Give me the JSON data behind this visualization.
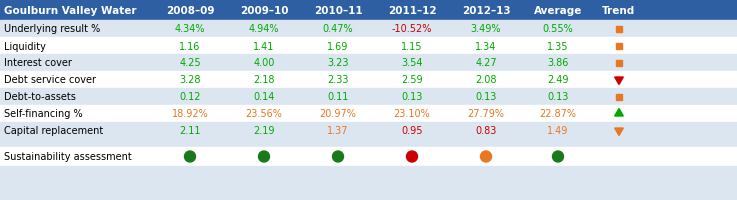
{
  "title": "Goulburn Valley Water",
  "header_cols": [
    "2008–09",
    "2009–10",
    "2010–11",
    "2011–12",
    "2012–13",
    "Average",
    "Trend"
  ],
  "rows": [
    {
      "label": "Underlying result %",
      "values": [
        "4.34%",
        "4.94%",
        "0.47%",
        "-10.52%",
        "3.49%",
        "0.55%"
      ],
      "value_colors": [
        "#00aa00",
        "#00aa00",
        "#00aa00",
        "#cc0000",
        "#00aa00",
        "#00aa00"
      ],
      "trend_shape": "square",
      "trend_color": "#e87722"
    },
    {
      "label": "Liquidity",
      "values": [
        "1.16",
        "1.41",
        "1.69",
        "1.15",
        "1.34",
        "1.35"
      ],
      "value_colors": [
        "#00aa00",
        "#00aa00",
        "#00aa00",
        "#00aa00",
        "#00aa00",
        "#00aa00"
      ],
      "trend_shape": "square",
      "trend_color": "#e87722"
    },
    {
      "label": "Interest cover",
      "values": [
        "4.25",
        "4.00",
        "3.23",
        "3.54",
        "4.27",
        "3.86"
      ],
      "value_colors": [
        "#00aa00",
        "#00aa00",
        "#00aa00",
        "#00aa00",
        "#00aa00",
        "#00aa00"
      ],
      "trend_shape": "square",
      "trend_color": "#e87722"
    },
    {
      "label": "Debt service cover",
      "values": [
        "3.28",
        "2.18",
        "2.33",
        "2.59",
        "2.08",
        "2.49"
      ],
      "value_colors": [
        "#00aa00",
        "#00aa00",
        "#00aa00",
        "#00aa00",
        "#00aa00",
        "#00aa00"
      ],
      "trend_shape": "triangle_down",
      "trend_color": "#cc0000"
    },
    {
      "label": "Debt-to-assets",
      "values": [
        "0.12",
        "0.14",
        "0.11",
        "0.13",
        "0.13",
        "0.13"
      ],
      "value_colors": [
        "#00aa00",
        "#00aa00",
        "#00aa00",
        "#00aa00",
        "#00aa00",
        "#00aa00"
      ],
      "trend_shape": "square",
      "trend_color": "#e87722"
    },
    {
      "label": "Self-financing %",
      "values": [
        "18.92%",
        "23.56%",
        "20.97%",
        "23.10%",
        "27.79%",
        "22.87%"
      ],
      "value_colors": [
        "#e87722",
        "#e87722",
        "#e87722",
        "#e87722",
        "#e87722",
        "#e87722"
      ],
      "trend_shape": "triangle_up",
      "trend_color": "#00aa00"
    },
    {
      "label": "Capital replacement",
      "values": [
        "2.11",
        "2.19",
        "1.37",
        "0.95",
        "0.83",
        "1.49"
      ],
      "value_colors": [
        "#00aa00",
        "#00aa00",
        "#e87722",
        "#cc0000",
        "#cc0000",
        "#e87722"
      ],
      "trend_shape": "triangle_down",
      "trend_color": "#e87722"
    }
  ],
  "sustainability_label": "Sustainability assessment",
  "sustainability_colors": [
    "#1a7a1a",
    "#1a7a1a",
    "#1a7a1a",
    "#cc0000",
    "#e87722",
    "#1a7a1a"
  ],
  "header_bg": "#2e5fa3",
  "header_text_color": "#ffffff",
  "row_bg_odd": "#dce6f1",
  "row_bg_even": "#ffffff",
  "label_color": "#000000",
  "fig_width": 7.37,
  "fig_height": 2.01,
  "dpi": 100
}
